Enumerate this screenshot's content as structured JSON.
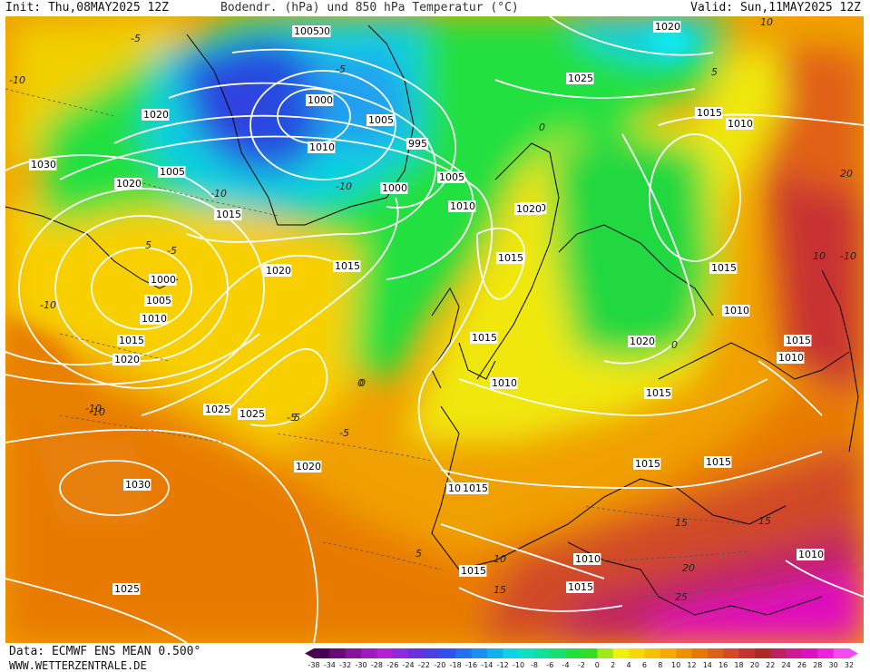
{
  "header": {
    "init": "Init: Thu,08MAY2025 12Z",
    "title": "Bodendr. (hPa) und 850 hPa Temperatur (°C)",
    "valid": "Valid: Sun,11MAY2025 12Z"
  },
  "footer": {
    "data_source": "Data: ECMWF ENS MEAN 0.500°",
    "website": "WWW.WETTERZENTRALE.DE"
  },
  "legend": {
    "ticks": [
      "-38",
      "-34",
      "-32",
      "-30",
      "-28",
      "-26",
      "-24",
      "-22",
      "-20",
      "-18",
      "-16",
      "-14",
      "-12",
      "-10",
      "-8",
      "-6",
      "-4",
      "-2",
      "0",
      "2",
      "4",
      "6",
      "8",
      "10",
      "12",
      "14",
      "16",
      "18",
      "20",
      "22",
      "24",
      "26",
      "28",
      "30",
      "32"
    ],
    "colors": [
      "#4a0050",
      "#6a0a78",
      "#8a10a0",
      "#a018c0",
      "#b81ed8",
      "#9028e0",
      "#6a30e0",
      "#4a40e8",
      "#3050f0",
      "#2070f0",
      "#1890f0",
      "#10b0f0",
      "#10d0e8",
      "#10e0c0",
      "#10e098",
      "#18e070",
      "#20e040",
      "#30e020",
      "#a0e818",
      "#f0f010",
      "#f8d808",
      "#f8c000",
      "#f8a800",
      "#f09000",
      "#e87800",
      "#e06018",
      "#d84828",
      "#c83030",
      "#b02828",
      "#c02060",
      "#d01898",
      "#e010c0",
      "#f020e0",
      "#f848f0"
    ]
  },
  "map": {
    "isobar_labels": [
      "1000",
      "1005",
      "1020",
      "1005",
      "1000",
      "1010",
      "1005",
      "995",
      "1000",
      "1005",
      "1010",
      "1025",
      "1020",
      "1015",
      "1010",
      "1030",
      "1020",
      "1025",
      "1015",
      "1020",
      "1015",
      "1010",
      "1000",
      "1005",
      "1010",
      "1015",
      "1020",
      "1020",
      "1015",
      "1020",
      "1025",
      "1025",
      "1020",
      "1030",
      "1025",
      "1015",
      "1015",
      "1010",
      "1015",
      "1020",
      "1015",
      "1015",
      "1015",
      "1015",
      "1010",
      "1010",
      "1015",
      "1010",
      "1015",
      "1010",
      "1015"
    ],
    "temperature_labels": [
      "-10",
      "-10",
      "-10",
      "-5",
      "0",
      "-5",
      "0",
      "-5",
      "0",
      "-10",
      "-5",
      "-10",
      "5",
      "-5",
      "-10",
      "10",
      "-10",
      "5",
      "0",
      "5",
      "15",
      "20",
      "25",
      "20",
      "10",
      "15",
      "5",
      "10",
      "15"
    ],
    "colors": {
      "cold_blue": "#1a4fe0",
      "cyan": "#10d4e8",
      "green": "#20e040",
      "yellow": "#f0f010",
      "orange": "#f8a800",
      "red": "#c83030",
      "magenta": "#e010c0"
    }
  }
}
